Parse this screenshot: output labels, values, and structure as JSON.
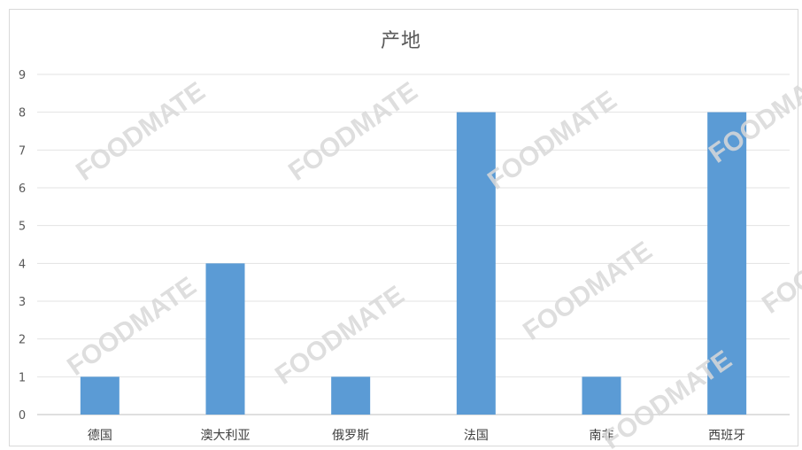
{
  "chart_data": {
    "type": "bar",
    "title": "产地",
    "categories": [
      "德国",
      "澳大利亚",
      "俄罗斯",
      "法国",
      "南非",
      "西班牙"
    ],
    "values": [
      1,
      4,
      1,
      8,
      1,
      8
    ],
    "ylim": [
      0,
      9
    ],
    "yticks": [
      0,
      1,
      2,
      3,
      4,
      5,
      6,
      7,
      8,
      9
    ],
    "grid": true,
    "bar_color": "#5b9bd5"
  },
  "watermark": {
    "text": "FOODMATE"
  }
}
